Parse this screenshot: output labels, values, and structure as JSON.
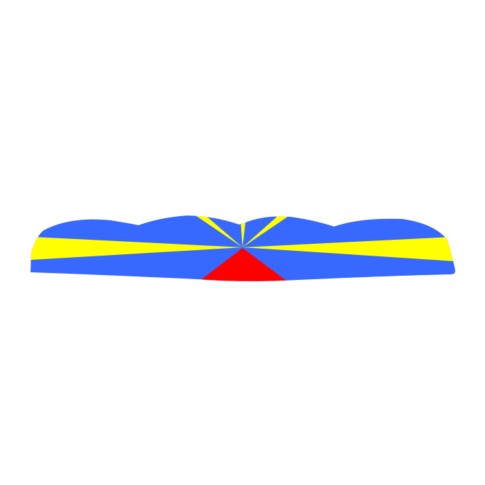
{
  "flag": {
    "subject": "waving flag",
    "colors": {
      "field": "#3768ff",
      "rays": "#ffff00",
      "triangle": "#ff0000",
      "background": "#ffffff"
    }
  }
}
